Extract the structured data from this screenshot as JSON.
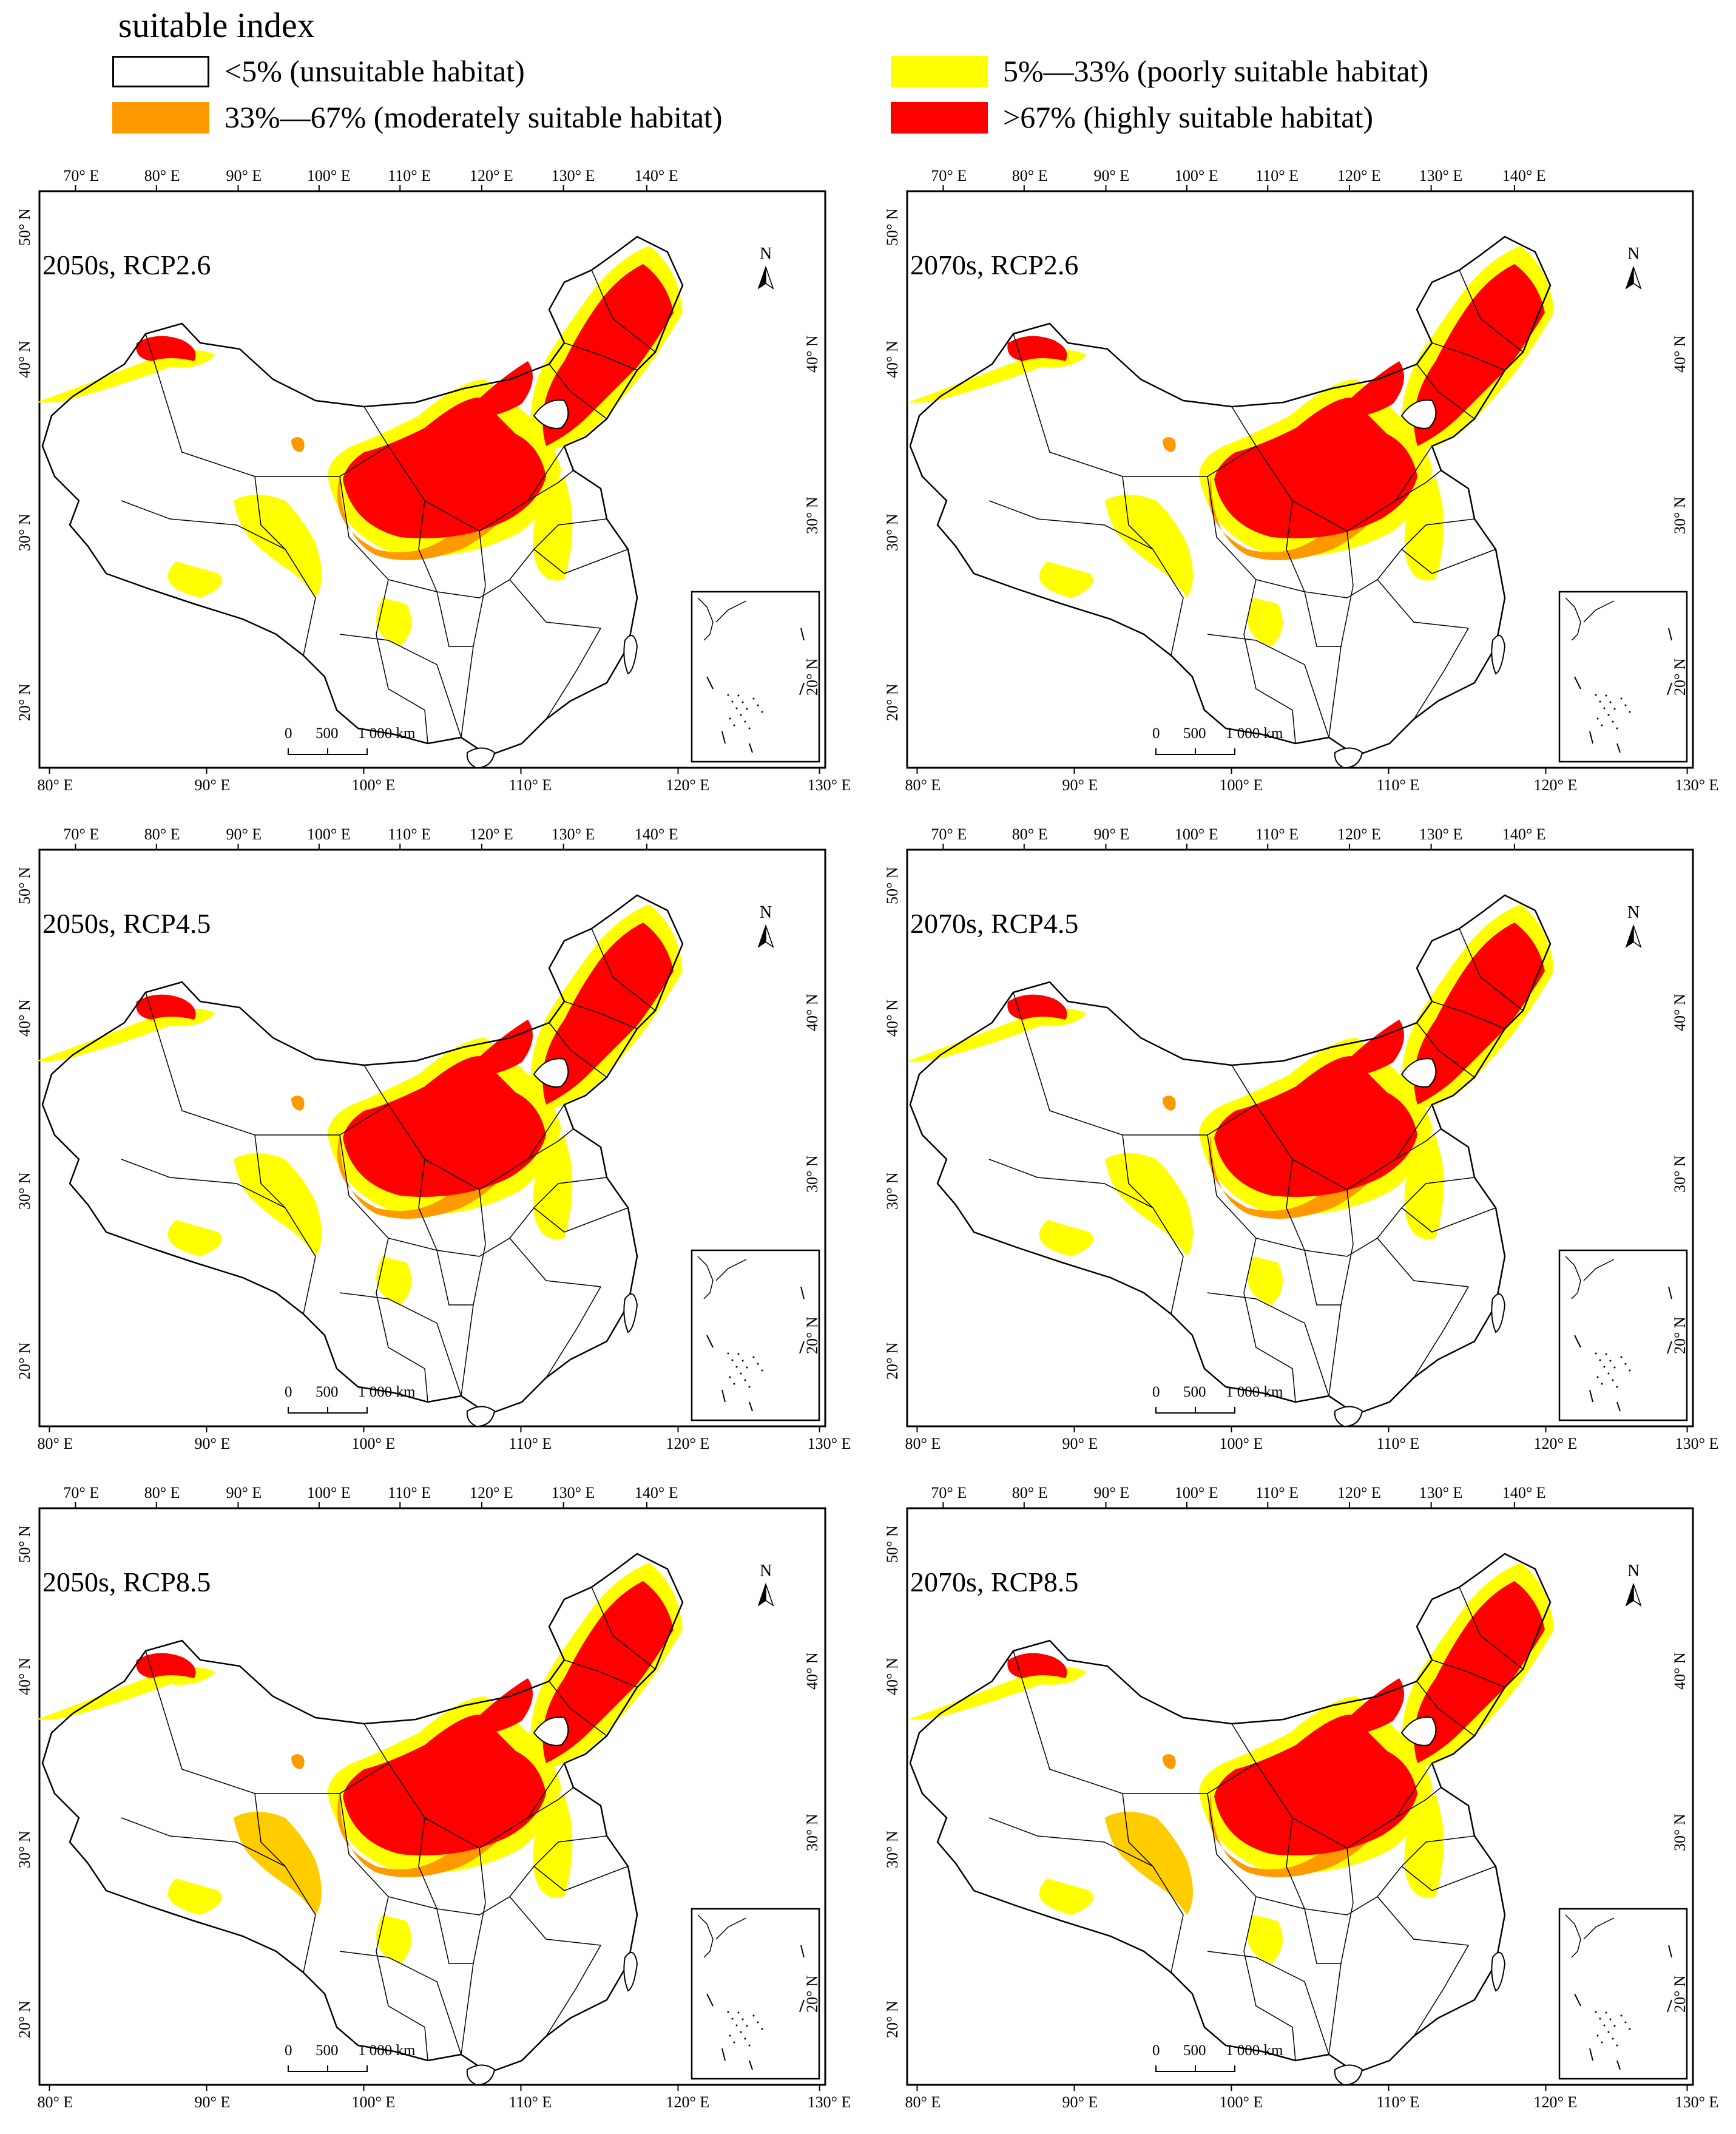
{
  "legend": {
    "title": "suitable index",
    "items": [
      {
        "label": "<5% (unsuitable habitat)",
        "color": "#ffffff",
        "border": "#000000"
      },
      {
        "label": "5%—33% (poorly suitable habitat)",
        "color": "#ffff00"
      },
      {
        "label": "33%—67% (moderately suitable habitat)",
        "color": "#ff9900"
      },
      {
        "label": ">67% (highly suitable habitat)",
        "color": "#ff0000"
      }
    ]
  },
  "top_lon_ticks": [
    "70° E",
    "80° E",
    "90° E",
    "100° E",
    "110° E",
    "120° E",
    "130° E",
    "140° E"
  ],
  "bottom_lon_ticks": [
    "80° E",
    "90° E",
    "100° E",
    "110° E",
    "120° E",
    "130° E"
  ],
  "left_lat_ticks": [
    "50° N",
    "40° N",
    "30° N",
    "20° N"
  ],
  "right_lat_ticks": [
    "40° N",
    "30° N",
    "20° N"
  ],
  "scale_bar": {
    "zero": "0",
    "mid": "500",
    "end": "1 000 km"
  },
  "north_arrow": "N",
  "panels": [
    {
      "label": "2050s, RCP2.6"
    },
    {
      "label": "2070s, RCP2.6"
    },
    {
      "label": "2050s, RCP4.5"
    },
    {
      "label": "2070s, RCP4.5"
    },
    {
      "label": "2050s, RCP8.5"
    },
    {
      "label": "2070s, RCP8.5"
    }
  ]
}
